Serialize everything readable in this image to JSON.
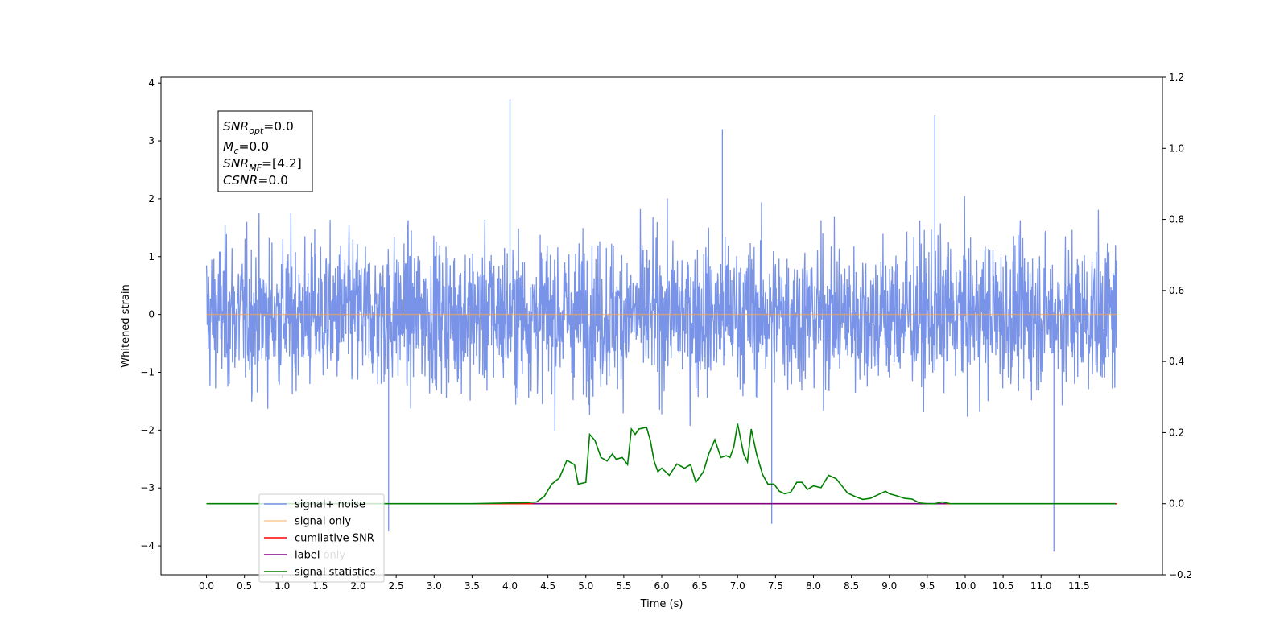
{
  "chart_data": {
    "type": "line",
    "xlabel": "Time (s)",
    "ylabel": "Whitened strain",
    "xlim": [
      -0.6,
      12.6
    ],
    "ylim": [
      -4.5,
      4.1
    ],
    "y2lim": [
      -0.2,
      1.2
    ],
    "x_ticks": [
      "0.0",
      "0.5",
      "1.0",
      "1.5",
      "2.0",
      "2.5",
      "3.0",
      "3.5",
      "4.0",
      "4.5",
      "5.0",
      "5.5",
      "6.0",
      "6.5",
      "7.0",
      "7.5",
      "8.0",
      "8.5",
      "9.0",
      "9.5",
      "10.0",
      "10.5",
      "11.0",
      "11.5"
    ],
    "y_ticks": [
      "4",
      "3",
      "2",
      "1",
      "0",
      "−1",
      "−2",
      "−3",
      "−4"
    ],
    "y2_ticks": [
      "1.2",
      "1.0",
      "0.8",
      "0.6",
      "0.4",
      "0.2",
      "0.0",
      "−0.2"
    ],
    "grid": false,
    "legend_position": "lower-left",
    "stats_box": {
      "snr_opt": {
        "base": "SNR",
        "sub": "opt",
        "value": "=0.0"
      },
      "mc": {
        "base": "M",
        "sub": "c",
        "value": "=0.0"
      },
      "snr_mf": {
        "base": "SNR",
        "sub": "MF",
        "value": "=[4.2]"
      },
      "csnr": {
        "base": "CSNR",
        "sub": "",
        "value": "=0.0"
      }
    },
    "series": [
      {
        "name": "signal+ noise",
        "color": "#7893e7",
        "axis": "left",
        "description_points": {
          "x_range": [
            0.0,
            12.0
          ],
          "mean": 0.0,
          "typical_range": [
            -2.2,
            2.3
          ],
          "extremes": [
            [
              4.0,
              3.72
            ],
            [
              2.4,
              -3.75
            ],
            [
              7.45,
              -3.62
            ],
            [
              11.17,
              -4.1
            ],
            [
              9.6,
              3.44
            ],
            [
              6.8,
              3.2
            ]
          ]
        }
      },
      {
        "name": "signal only",
        "color": "#ffa64d",
        "axis": "left",
        "x": [
          0.0,
          12.0
        ],
        "values": [
          0.0,
          0.0
        ]
      },
      {
        "name": "cumilative SNR",
        "color": "#ff0000",
        "axis": "right",
        "x": [
          0.0,
          12.0
        ],
        "values": [
          0.0,
          0.0
        ]
      },
      {
        "name": "label",
        "color": "#800080",
        "axis": "right",
        "x": [
          4.3,
          9.75
        ],
        "values": [
          0.0,
          0.0
        ]
      },
      {
        "name": "label only",
        "color": "#dddddd",
        "axis": "right",
        "x": [],
        "values": []
      },
      {
        "name": "signal statistics",
        "color": "#008000",
        "axis": "right",
        "x": [
          0.0,
          0.5,
          1.0,
          1.5,
          2.0,
          2.5,
          3.0,
          3.5,
          4.0,
          4.2,
          4.35,
          4.45,
          4.55,
          4.65,
          4.75,
          4.85,
          4.9,
          5.0,
          5.05,
          5.12,
          5.2,
          5.28,
          5.35,
          5.4,
          5.48,
          5.55,
          5.6,
          5.65,
          5.7,
          5.8,
          5.85,
          5.9,
          5.95,
          6.0,
          6.1,
          6.2,
          6.3,
          6.38,
          6.45,
          6.55,
          6.62,
          6.7,
          6.78,
          6.85,
          6.9,
          6.95,
          7.0,
          7.08,
          7.13,
          7.18,
          7.25,
          7.33,
          7.4,
          7.48,
          7.55,
          7.62,
          7.7,
          7.78,
          7.85,
          7.92,
          8.0,
          8.1,
          8.2,
          8.3,
          8.45,
          8.55,
          8.65,
          8.75,
          8.85,
          8.95,
          9.0,
          9.1,
          9.2,
          9.3,
          9.4,
          9.5,
          9.6,
          9.7,
          9.8,
          10.0,
          10.5,
          11.0,
          11.5,
          11.98
        ],
        "values": [
          0.0,
          0.0,
          0.0,
          0.0,
          0.0,
          0.0,
          0.0,
          0.0,
          0.002,
          0.003,
          0.005,
          0.02,
          0.055,
          0.072,
          0.122,
          0.11,
          0.055,
          0.06,
          0.195,
          0.178,
          0.13,
          0.12,
          0.14,
          0.125,
          0.13,
          0.11,
          0.21,
          0.195,
          0.21,
          0.215,
          0.178,
          0.12,
          0.09,
          0.1,
          0.08,
          0.112,
          0.1,
          0.11,
          0.06,
          0.09,
          0.14,
          0.18,
          0.13,
          0.135,
          0.13,
          0.16,
          0.225,
          0.14,
          0.118,
          0.21,
          0.14,
          0.082,
          0.055,
          0.055,
          0.035,
          0.028,
          0.032,
          0.06,
          0.06,
          0.04,
          0.05,
          0.045,
          0.08,
          0.07,
          0.03,
          0.02,
          0.012,
          0.015,
          0.025,
          0.035,
          0.028,
          0.022,
          0.015,
          0.013,
          0.002,
          0.0,
          0.0,
          0.005,
          0.0,
          0.0,
          0.0,
          0.0,
          0.0,
          0.0
        ]
      }
    ]
  }
}
